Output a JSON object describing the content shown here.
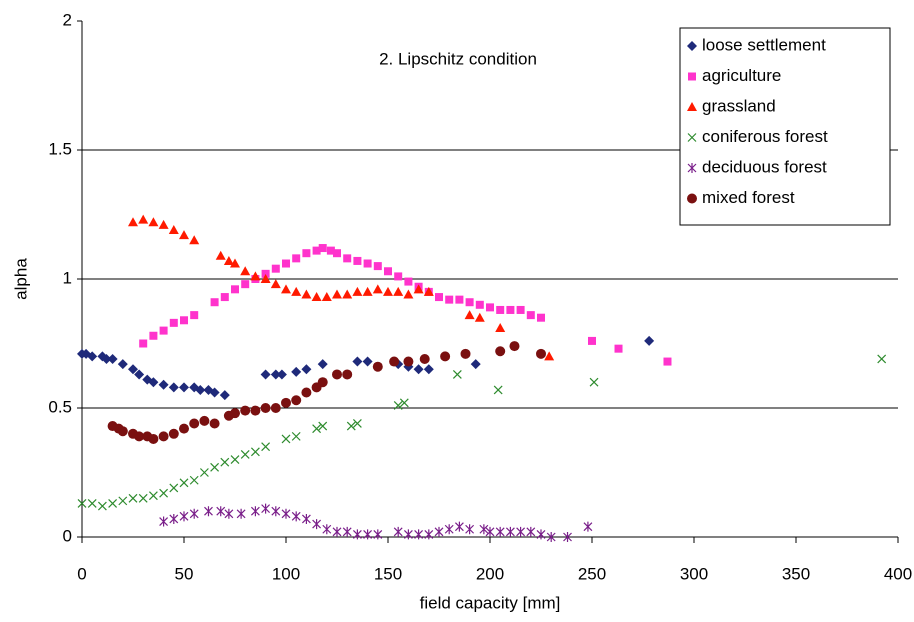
{
  "chart_data": {
    "type": "scatter",
    "annotation": "2. Lipschitz condition",
    "x_label": "field capacity [mm]",
    "y_label": "alpha",
    "xlim": [
      0,
      400
    ],
    "xticks": [
      0,
      50,
      100,
      150,
      200,
      250,
      300,
      350,
      400
    ],
    "ylim": [
      0,
      2
    ],
    "yticks": [
      0,
      0.5,
      1,
      1.5,
      2
    ],
    "grid": true,
    "legend": "top-right",
    "series": [
      {
        "name": "loose settlement",
        "color": "#1f2a7a",
        "marker": "diamond",
        "x": [
          0,
          2,
          5,
          10,
          12,
          15,
          20,
          25,
          28,
          32,
          35,
          40,
          45,
          50,
          55,
          58,
          62,
          65,
          70,
          90,
          95,
          98,
          105,
          110,
          118,
          135,
          140,
          155,
          160,
          165,
          170,
          193,
          278
        ],
        "values": [
          0.71,
          0.71,
          0.7,
          0.7,
          0.69,
          0.69,
          0.67,
          0.65,
          0.63,
          0.61,
          0.6,
          0.59,
          0.58,
          0.58,
          0.58,
          0.57,
          0.57,
          0.56,
          0.55,
          0.63,
          0.63,
          0.63,
          0.64,
          0.65,
          0.67,
          0.68,
          0.68,
          0.67,
          0.66,
          0.65,
          0.65,
          0.67,
          0.76
        ]
      },
      {
        "name": "agriculture",
        "color": "#ff33cc",
        "marker": "square",
        "x": [
          30,
          35,
          40,
          45,
          50,
          55,
          65,
          70,
          75,
          80,
          85,
          90,
          95,
          100,
          105,
          110,
          115,
          118,
          122,
          125,
          130,
          135,
          140,
          145,
          150,
          155,
          160,
          165,
          170,
          175,
          180,
          185,
          190,
          195,
          200,
          205,
          210,
          215,
          220,
          225,
          250,
          263,
          287
        ],
        "values": [
          0.75,
          0.78,
          0.8,
          0.83,
          0.84,
          0.86,
          0.91,
          0.93,
          0.96,
          0.98,
          1.0,
          1.02,
          1.04,
          1.06,
          1.08,
          1.1,
          1.11,
          1.12,
          1.11,
          1.1,
          1.08,
          1.07,
          1.06,
          1.05,
          1.03,
          1.01,
          0.99,
          0.97,
          0.95,
          0.93,
          0.92,
          0.92,
          0.91,
          0.9,
          0.89,
          0.88,
          0.88,
          0.88,
          0.86,
          0.85,
          0.76,
          0.73,
          0.68
        ]
      },
      {
        "name": "grassland",
        "color": "#ff1a00",
        "marker": "triangle",
        "x": [
          25,
          30,
          35,
          40,
          45,
          50,
          55,
          68,
          72,
          75,
          80,
          85,
          90,
          95,
          100,
          105,
          110,
          115,
          120,
          125,
          130,
          135,
          140,
          145,
          150,
          155,
          160,
          165,
          170,
          190,
          195,
          205,
          229
        ],
        "values": [
          1.22,
          1.23,
          1.22,
          1.21,
          1.19,
          1.17,
          1.15,
          1.09,
          1.07,
          1.06,
          1.03,
          1.01,
          1.0,
          0.98,
          0.96,
          0.95,
          0.94,
          0.93,
          0.93,
          0.94,
          0.94,
          0.95,
          0.95,
          0.96,
          0.95,
          0.95,
          0.94,
          0.96,
          0.95,
          0.86,
          0.85,
          0.81,
          0.7
        ]
      },
      {
        "name": "coniferous forest",
        "color": "#2e8b2e",
        "marker": "x",
        "x": [
          0,
          5,
          10,
          15,
          20,
          25,
          30,
          35,
          40,
          45,
          50,
          55,
          60,
          65,
          70,
          75,
          80,
          85,
          90,
          100,
          105,
          115,
          118,
          132,
          135,
          155,
          158,
          184,
          204,
          251,
          392
        ],
        "values": [
          0.13,
          0.13,
          0.12,
          0.13,
          0.14,
          0.15,
          0.15,
          0.16,
          0.17,
          0.19,
          0.21,
          0.22,
          0.25,
          0.27,
          0.29,
          0.3,
          0.32,
          0.33,
          0.35,
          0.38,
          0.39,
          0.42,
          0.43,
          0.43,
          0.44,
          0.51,
          0.52,
          0.63,
          0.57,
          0.6,
          0.69
        ]
      },
      {
        "name": "deciduous forest",
        "color": "#7a1f8a",
        "marker": "star",
        "x": [
          40,
          45,
          50,
          55,
          62,
          68,
          72,
          78,
          85,
          90,
          95,
          100,
          105,
          110,
          115,
          120,
          125,
          130,
          135,
          140,
          145,
          155,
          160,
          165,
          170,
          175,
          180,
          185,
          190,
          197,
          200,
          205,
          210,
          215,
          220,
          225,
          230,
          238,
          248
        ],
        "values": [
          0.06,
          0.07,
          0.08,
          0.09,
          0.1,
          0.1,
          0.09,
          0.09,
          0.1,
          0.11,
          0.1,
          0.09,
          0.08,
          0.07,
          0.05,
          0.03,
          0.02,
          0.02,
          0.01,
          0.01,
          0.01,
          0.02,
          0.01,
          0.01,
          0.01,
          0.02,
          0.03,
          0.04,
          0.03,
          0.03,
          0.02,
          0.02,
          0.02,
          0.02,
          0.02,
          0.01,
          0.0,
          0.0,
          0.04
        ]
      },
      {
        "name": "mixed forest",
        "color": "#7a1010",
        "marker": "circle",
        "x": [
          15,
          18,
          20,
          25,
          28,
          32,
          35,
          40,
          45,
          50,
          55,
          60,
          65,
          72,
          75,
          80,
          85,
          90,
          95,
          100,
          105,
          110,
          115,
          118,
          125,
          130,
          145,
          153,
          160,
          168,
          178,
          188,
          205,
          212,
          225
        ],
        "values": [
          0.43,
          0.42,
          0.41,
          0.4,
          0.39,
          0.39,
          0.38,
          0.39,
          0.4,
          0.42,
          0.44,
          0.45,
          0.44,
          0.47,
          0.48,
          0.49,
          0.49,
          0.5,
          0.5,
          0.52,
          0.53,
          0.56,
          0.58,
          0.6,
          0.63,
          0.63,
          0.66,
          0.68,
          0.68,
          0.69,
          0.7,
          0.71,
          0.72,
          0.74,
          0.71
        ]
      }
    ]
  }
}
